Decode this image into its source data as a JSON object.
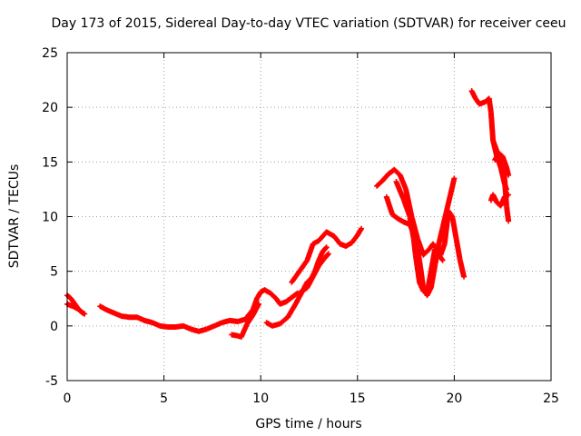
{
  "chart_data": {
    "type": "scatter",
    "title": "Day 173 of 2015, Sidereal Day-to-day VTEC variation (SDTVAR) for receiver ceeu",
    "xlabel": "GPS time / hours",
    "ylabel": "SDTVAR / TECUs",
    "xlim": [
      0,
      25
    ],
    "ylim": [
      -5,
      25
    ],
    "xticks": [
      0,
      5,
      10,
      15,
      20,
      25
    ],
    "yticks": [
      -5,
      0,
      5,
      10,
      15,
      20,
      25
    ],
    "grid": true,
    "marker": "+",
    "color": "#ff0000",
    "series": [
      {
        "name": "seg1",
        "x": [
          0.0,
          0.2,
          0.4,
          0.6,
          0.8,
          0.9
        ],
        "y": [
          2.8,
          2.5,
          2.0,
          1.5,
          1.2,
          1.1
        ]
      },
      {
        "name": "seg2",
        "x": [
          0.0,
          0.3,
          0.6,
          0.8
        ],
        "y": [
          2.0,
          1.8,
          1.5,
          1.2
        ]
      },
      {
        "name": "seg3",
        "x": [
          1.7,
          2.0,
          2.4,
          2.8,
          3.2,
          3.6,
          4.0,
          4.4,
          4.8,
          5.2,
          5.6,
          6.0,
          6.4,
          6.8,
          7.2,
          7.6,
          8.0,
          8.4,
          8.8,
          9.2,
          9.6,
          9.8,
          10.0,
          10.2,
          10.5,
          10.8,
          11.0,
          11.3,
          11.6,
          11.9
        ],
        "y": [
          1.8,
          1.5,
          1.2,
          0.9,
          0.8,
          0.8,
          0.5,
          0.3,
          0.0,
          -0.1,
          -0.1,
          0.0,
          -0.3,
          -0.5,
          -0.3,
          0.0,
          0.3,
          0.5,
          0.4,
          0.6,
          1.5,
          2.5,
          3.1,
          3.3,
          3.0,
          2.5,
          2.0,
          2.2,
          2.6,
          3.0
        ]
      },
      {
        "name": "seg4",
        "x": [
          8.5,
          8.8,
          9.0,
          9.3,
          9.6,
          9.9
        ],
        "y": [
          -0.8,
          -0.9,
          -1.0,
          0.2,
          1.0,
          2.0
        ]
      },
      {
        "name": "seg5",
        "x": [
          10.3,
          10.6,
          11.0,
          11.4,
          11.8,
          12.1,
          12.4,
          12.6,
          12.8,
          13.0,
          13.2,
          13.4
        ],
        "y": [
          0.3,
          0.0,
          0.2,
          0.8,
          2.0,
          3.0,
          4.0,
          4.3,
          5.0,
          6.0,
          6.8,
          7.2
        ]
      },
      {
        "name": "seg6",
        "x": [
          11.6,
          12.0,
          12.4,
          12.7,
          13.0,
          13.4,
          13.8,
          14.1,
          14.4,
          14.7,
          15.0,
          15.2
        ],
        "y": [
          4.0,
          5.0,
          6.0,
          7.5,
          7.8,
          8.6,
          8.2,
          7.5,
          7.3,
          7.6,
          8.3,
          8.9
        ]
      },
      {
        "name": "seg7",
        "x": [
          12.0,
          12.4,
          12.7,
          13.0,
          13.3,
          13.5
        ],
        "y": [
          3.0,
          3.5,
          4.5,
          5.5,
          6.2,
          6.6
        ]
      },
      {
        "name": "seg8",
        "x": [
          16.0,
          16.3,
          16.6,
          16.9,
          17.2,
          17.5,
          17.8,
          18.1,
          18.4,
          18.7,
          18.9,
          19.1,
          19.3,
          19.5,
          19.7,
          19.9,
          20.1,
          20.3,
          20.5
        ],
        "y": [
          12.8,
          13.3,
          13.9,
          14.3,
          13.8,
          12.5,
          10.0,
          8.0,
          6.5,
          7.0,
          7.5,
          7.0,
          6.5,
          7.5,
          10.5,
          10.0,
          8.0,
          6.0,
          4.5
        ]
      },
      {
        "name": "seg9",
        "x": [
          16.5,
          16.8,
          17.1,
          17.4,
          17.7,
          18.0,
          18.2,
          18.4,
          18.6,
          18.8,
          19.0,
          19.2,
          19.4,
          19.6,
          19.8,
          20.0
        ],
        "y": [
          11.8,
          10.2,
          9.8,
          9.5,
          9.3,
          8.0,
          6.0,
          3.5,
          2.8,
          3.5,
          5.5,
          7.5,
          9.0,
          10.5,
          12.0,
          13.5
        ]
      },
      {
        "name": "seg10",
        "x": [
          17.0,
          17.4,
          17.7,
          17.9,
          18.0,
          18.2,
          18.4,
          18.6,
          18.8,
          19.0,
          19.2,
          19.4
        ],
        "y": [
          13.2,
          11.5,
          10.0,
          8.0,
          6.5,
          4.0,
          3.2,
          3.0,
          5.0,
          7.0,
          6.5,
          6.0
        ]
      },
      {
        "name": "seg11",
        "x": [
          20.9,
          21.1,
          21.3,
          21.6,
          21.8,
          21.9,
          22.0,
          22.2,
          22.4,
          22.6,
          22.7
        ],
        "y": [
          21.5,
          20.8,
          20.3,
          20.5,
          20.8,
          19.5,
          17.0,
          15.5,
          14.5,
          13.0,
          12.5
        ]
      },
      {
        "name": "seg12",
        "x": [
          21.9,
          22.0,
          22.2,
          22.4,
          22.6,
          22.8
        ],
        "y": [
          11.5,
          12.0,
          11.3,
          11.0,
          11.8,
          12.0
        ]
      },
      {
        "name": "seg13",
        "x": [
          22.0,
          22.2,
          22.4,
          22.5,
          22.6,
          22.7,
          22.8
        ],
        "y": [
          17.0,
          16.0,
          15.5,
          15.0,
          13.5,
          11.0,
          9.6
        ]
      },
      {
        "name": "seg14",
        "x": [
          22.1,
          22.3,
          22.5,
          22.7,
          22.8
        ],
        "y": [
          15.2,
          15.8,
          15.5,
          14.5,
          13.8
        ]
      }
    ]
  }
}
